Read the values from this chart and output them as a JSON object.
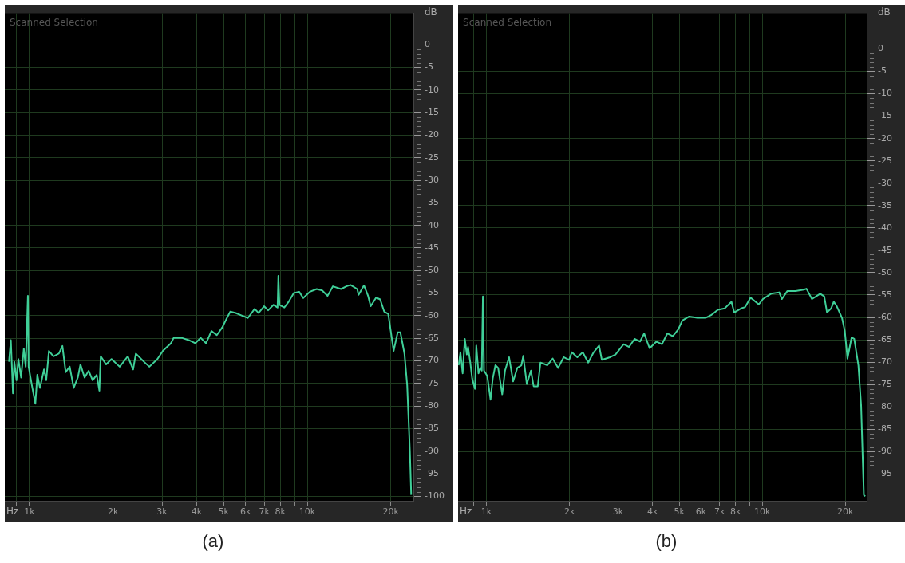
{
  "chart_data": [
    {
      "type": "line",
      "xlabel": "Hz",
      "ylabel": "dB",
      "annotations": [
        "Scanned Selection",
        "(a)"
      ],
      "log": "x",
      "grid": true,
      "legend": false,
      "marker": "none",
      "line_style": "solid",
      "xlim": [
        815,
        24100
      ],
      "ylim": [
        -101,
        7
      ],
      "xticks": [
        {
          "value": 900,
          "label": null
        },
        {
          "value": 1000,
          "label": "1k"
        },
        {
          "value": 2000,
          "label": "2k"
        },
        {
          "value": 3000,
          "label": "3k"
        },
        {
          "value": 4000,
          "label": "4k"
        },
        {
          "value": 5000,
          "label": "5k"
        },
        {
          "value": 6000,
          "label": "6k"
        },
        {
          "value": 7000,
          "label": "7k"
        },
        {
          "value": 8000,
          "label": "8k"
        },
        {
          "value": 9000,
          "label": null
        },
        {
          "value": 10000,
          "label": "10k"
        },
        {
          "value": 20000,
          "label": "20k"
        }
      ],
      "yticks": [
        0,
        -5,
        -10,
        -15,
        -20,
        -25,
        -30,
        -35,
        -40,
        -45,
        -50,
        -55,
        -60,
        -65,
        -70,
        -75,
        -80,
        -85,
        -90,
        -95,
        -100
      ],
      "series": [
        {
          "color": "#3fcf98",
          "x": [
            844,
            857,
            872,
            882,
            898,
            912,
            933,
            954,
            969,
            987,
            993,
            1020,
            1050,
            1067,
            1091,
            1128,
            1149,
            1175,
            1220,
            1276,
            1314,
            1350,
            1396,
            1443,
            1493,
            1526,
            1579,
            1633,
            1688,
            1746,
            1785,
            1805,
            1888,
            1974,
            2112,
            2259,
            2361,
            2415,
            2583,
            2701,
            2888,
            3021,
            3230,
            3304,
            3533,
            3779,
            3952,
            4133,
            4322,
            4519,
            4726,
            4942,
            5168,
            5284,
            5527,
            5779,
            6112,
            6465,
            6685,
            6991,
            7230,
            7560,
            7818,
            7870,
            7941,
            8268,
            8551,
            8942,
            9350,
            9670,
            10220,
            10810,
            11310,
            11830,
            12370,
            13230,
            13830,
            14310,
            15130,
            15300,
            16000,
            16550,
            16920,
            17690,
            18300,
            18920,
            19560,
            20010,
            20460,
            21160,
            21640,
            22380,
            22890,
            23410,
            23670
          ],
          "values": [
            -70.2,
            -65.4,
            -77.2,
            -70.2,
            -74.3,
            -69.6,
            -73.7,
            -67.3,
            -71.3,
            -55.6,
            -71.3,
            -75.4,
            -79.5,
            -73.1,
            -76.0,
            -71.9,
            -74.3,
            -67.8,
            -69.0,
            -68.4,
            -66.7,
            -72.5,
            -71.3,
            -76.0,
            -73.7,
            -70.8,
            -73.7,
            -72.2,
            -74.3,
            -73.1,
            -76.6,
            -69.0,
            -70.8,
            -69.6,
            -71.3,
            -69.0,
            -71.9,
            -68.4,
            -70.2,
            -71.3,
            -69.6,
            -67.8,
            -66.1,
            -64.9,
            -64.9,
            -65.5,
            -66.1,
            -64.9,
            -66.1,
            -63.4,
            -64.3,
            -62.6,
            -60.2,
            -59.1,
            -59.4,
            -59.9,
            -60.5,
            -58.5,
            -59.4,
            -57.9,
            -58.8,
            -57.6,
            -58.2,
            -51.2,
            -57.6,
            -58.2,
            -57.0,
            -55.0,
            -54.7,
            -56.1,
            -54.7,
            -54.1,
            -54.4,
            -55.6,
            -53.5,
            -54.1,
            -53.5,
            -53.2,
            -54.1,
            -55.4,
            -53.3,
            -55.6,
            -57.9,
            -56.0,
            -56.4,
            -59.1,
            -59.6,
            -63.7,
            -67.8,
            -63.7,
            -63.7,
            -68.4,
            -75.4,
            -90.1,
            -99.7
          ]
        }
      ]
    },
    {
      "type": "line",
      "xlabel": "Hz",
      "ylabel": "dB",
      "annotations": [
        "Scanned Selection",
        "(b)"
      ],
      "log": "x",
      "grid": true,
      "legend": false,
      "marker": "none",
      "line_style": "solid",
      "xlim": [
        790,
        23900
      ],
      "ylim": [
        -101,
        8
      ],
      "xticks": [
        {
          "value": 800,
          "label": null
        },
        {
          "value": 900,
          "label": null
        },
        {
          "value": 1000,
          "label": "1k"
        },
        {
          "value": 2000,
          "label": "2k"
        },
        {
          "value": 3000,
          "label": "3k"
        },
        {
          "value": 4000,
          "label": "4k"
        },
        {
          "value": 5000,
          "label": "5k"
        },
        {
          "value": 6000,
          "label": "6k"
        },
        {
          "value": 7000,
          "label": "7k"
        },
        {
          "value": 8000,
          "label": "8k"
        },
        {
          "value": 9000,
          "label": null
        },
        {
          "value": 10000,
          "label": "10k"
        },
        {
          "value": 20000,
          "label": "20k"
        }
      ],
      "yticks": [
        0,
        -5,
        -10,
        -15,
        -20,
        -25,
        -30,
        -35,
        -40,
        -45,
        -50,
        -55,
        -60,
        -65,
        -70,
        -75,
        -80,
        -85,
        -90,
        -95
      ],
      "series": [
        {
          "color": "#3fcf98",
          "x": [
            793,
            805,
            820,
            835,
            849,
            858,
            874,
            888,
            909,
            919,
            936,
            951,
            962,
            971,
            980,
            1007,
            1035,
            1054,
            1078,
            1103,
            1141,
            1168,
            1208,
            1250,
            1294,
            1339,
            1360,
            1401,
            1450,
            1483,
            1535,
            1570,
            1662,
            1739,
            1820,
            1905,
            1994,
            2040,
            2135,
            2235,
            2339,
            2447,
            2561,
            2620,
            2806,
            2937,
            3144,
            3290,
            3444,
            3605,
            3730,
            3904,
            4133,
            4325,
            4527,
            4738,
            4959,
            5131,
            5433,
            5817,
            6229,
            6519,
            6900,
            7304,
            7731,
            7909,
            8372,
            8665,
            9068,
            9707,
            10050,
            10760,
            11520,
            11780,
            12330,
            13200,
            14140,
            14460,
            15140,
            16210,
            16770,
            17160,
            17760,
            18160,
            18580,
            19450,
            19900,
            20360,
            21070,
            21540,
            22300,
            22810,
            23340,
            23610
          ],
          "values": [
            -70.7,
            -67.8,
            -72.5,
            -64.8,
            -68.3,
            -66.6,
            -70.1,
            -73.7,
            -76.0,
            -66.3,
            -72.5,
            -71.3,
            -71.9,
            -55.3,
            -71.9,
            -73.1,
            -78.4,
            -73.7,
            -70.7,
            -71.3,
            -77.2,
            -71.9,
            -68.9,
            -74.3,
            -71.3,
            -70.7,
            -68.6,
            -74.9,
            -71.9,
            -75.4,
            -75.4,
            -70.1,
            -70.7,
            -69.2,
            -71.3,
            -68.9,
            -69.5,
            -67.8,
            -68.9,
            -67.8,
            -70.1,
            -67.8,
            -66.3,
            -69.5,
            -68.9,
            -68.3,
            -66.0,
            -66.6,
            -64.8,
            -65.4,
            -63.6,
            -66.9,
            -65.4,
            -66.0,
            -63.6,
            -64.2,
            -62.7,
            -60.7,
            -59.8,
            -60.1,
            -60.1,
            -59.5,
            -58.3,
            -58.0,
            -56.5,
            -58.9,
            -58.0,
            -57.7,
            -55.6,
            -57.1,
            -55.9,
            -54.7,
            -54.4,
            -55.9,
            -54.1,
            -54.1,
            -53.8,
            -53.6,
            -55.9,
            -54.7,
            -55.3,
            -58.9,
            -58.0,
            -56.5,
            -57.4,
            -60.1,
            -63.0,
            -69.2,
            -64.5,
            -64.8,
            -70.7,
            -79.6,
            -99.7,
            -100.0
          ]
        }
      ]
    }
  ]
}
